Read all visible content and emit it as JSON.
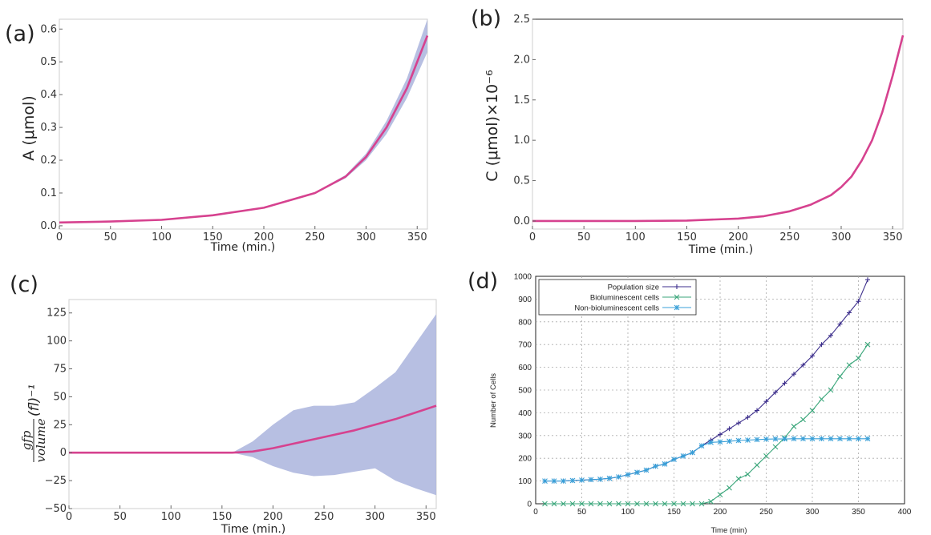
{
  "panels": {
    "a": "(a)",
    "b": "(b)",
    "c": "(c)",
    "d": "(d)"
  },
  "chart_data": [
    {
      "id": "a",
      "type": "line",
      "xlabel": "Time (min.)",
      "ylabel": "A (μmol)",
      "xlim": [
        0,
        360
      ],
      "ylim": [
        -0.01,
        0.63
      ],
      "x_ticks": [
        0,
        50,
        100,
        150,
        200,
        250,
        300,
        350
      ],
      "y_ticks": [
        0.0,
        0.1,
        0.2,
        0.3,
        0.4,
        0.5,
        0.6
      ],
      "x_tick_labels": [
        "0",
        "50",
        "100",
        "150",
        "200",
        "250",
        "300",
        "350"
      ],
      "y_tick_labels": [
        "0.0",
        "0.1",
        "0.2",
        "0.3",
        "0.4",
        "0.5",
        "0.6"
      ],
      "series": [
        {
          "x": [
            0,
            50,
            100,
            150,
            200,
            250,
            280,
            300,
            320,
            340,
            360
          ],
          "y": [
            0.01,
            0.013,
            0.018,
            0.032,
            0.055,
            0.1,
            0.15,
            0.21,
            0.3,
            0.42,
            0.58
          ],
          "band_low": [
            0.01,
            0.013,
            0.018,
            0.032,
            0.055,
            0.098,
            0.145,
            0.2,
            0.28,
            0.39,
            0.53
          ],
          "band_high": [
            0.01,
            0.013,
            0.018,
            0.032,
            0.055,
            0.102,
            0.155,
            0.22,
            0.32,
            0.45,
            0.63
          ]
        }
      ],
      "line_color": "#d6428f",
      "band_color": "#aab4dd",
      "grid": false
    },
    {
      "id": "b",
      "type": "line",
      "xlabel": "Time (min.)",
      "ylabel": "C (μmol)×10⁻⁶",
      "xlim": [
        0,
        360
      ],
      "ylim": [
        -0.1,
        2.5
      ],
      "x_ticks": [
        0,
        50,
        100,
        150,
        200,
        250,
        300,
        350
      ],
      "y_ticks": [
        0.0,
        0.5,
        1.0,
        1.5,
        2.0,
        2.5
      ],
      "x_tick_labels": [
        "0",
        "50",
        "100",
        "150",
        "200",
        "250",
        "300",
        "350"
      ],
      "y_tick_labels": [
        "0.0",
        "0.5",
        "1.0",
        "1.5",
        "2.0",
        "2.5"
      ],
      "series": [
        {
          "x": [
            0,
            100,
            150,
            200,
            225,
            250,
            270,
            290,
            300,
            310,
            320,
            330,
            340,
            350,
            360
          ],
          "y": [
            0.0,
            0.0,
            0.005,
            0.03,
            0.06,
            0.12,
            0.2,
            0.32,
            0.42,
            0.55,
            0.75,
            1.0,
            1.35,
            1.8,
            2.3
          ]
        }
      ],
      "line_color": "#d6428f",
      "grid": false
    },
    {
      "id": "c",
      "type": "line",
      "xlabel": "Time (min.)",
      "ylabel_num": "gfp",
      "ylabel_den": "volume",
      "ylabel_tail": "(fl)⁻¹",
      "xlim": [
        0,
        360
      ],
      "ylim": [
        -50,
        137
      ],
      "x_ticks": [
        0,
        50,
        100,
        150,
        200,
        250,
        300,
        350
      ],
      "y_ticks": [
        -50,
        -25,
        0,
        25,
        50,
        75,
        100,
        125
      ],
      "x_tick_labels": [
        "0",
        "50",
        "100",
        "150",
        "200",
        "250",
        "300",
        "350"
      ],
      "y_tick_labels": [
        "−50",
        "−25",
        "0",
        "25",
        "50",
        "75",
        "100",
        "125"
      ],
      "series": [
        {
          "x": [
            0,
            160,
            180,
            200,
            220,
            240,
            260,
            280,
            300,
            320,
            340,
            360
          ],
          "y": [
            0,
            0,
            1,
            4,
            8,
            12,
            16,
            20,
            25,
            30,
            36,
            42
          ],
          "band_low": [
            0,
            0,
            -4,
            -12,
            -18,
            -21,
            -20,
            -17,
            -14,
            -25,
            -32,
            -38
          ],
          "band_high": [
            0,
            0,
            10,
            25,
            38,
            42,
            42,
            45,
            58,
            72,
            98,
            124
          ]
        }
      ],
      "line_color": "#d6428f",
      "band_color": "#aab4dd",
      "grid": false
    },
    {
      "id": "d",
      "type": "line",
      "xlabel": "Time (min)",
      "ylabel": "Number of Cells",
      "xlim": [
        0,
        400
      ],
      "ylim": [
        0,
        1000
      ],
      "x_ticks": [
        0,
        50,
        100,
        150,
        200,
        250,
        300,
        350,
        400
      ],
      "y_ticks": [
        0,
        100,
        200,
        300,
        400,
        500,
        600,
        700,
        800,
        900,
        1000
      ],
      "x_tick_labels": [
        "0",
        "50",
        "100",
        "150",
        "200",
        "250",
        "300",
        "350",
        "400"
      ],
      "y_tick_labels": [
        "0",
        "100",
        "200",
        "300",
        "400",
        "500",
        "600",
        "700",
        "800",
        "900",
        "1000"
      ],
      "grid": true,
      "legend_position": "top-left",
      "x": [
        10,
        20,
        30,
        40,
        50,
        60,
        70,
        80,
        90,
        100,
        110,
        120,
        130,
        140,
        150,
        160,
        170,
        180,
        190,
        200,
        210,
        220,
        230,
        240,
        250,
        260,
        270,
        280,
        290,
        300,
        310,
        320,
        330,
        340,
        350,
        360
      ],
      "series": [
        {
          "name": "Population size",
          "color": "#3d2f8c",
          "marker": "plus",
          "values": [
            100,
            100,
            100,
            102,
            104,
            106,
            108,
            112,
            118,
            128,
            138,
            148,
            165,
            175,
            195,
            210,
            225,
            255,
            280,
            305,
            330,
            355,
            380,
            410,
            450,
            490,
            530,
            570,
            610,
            650,
            700,
            740,
            790,
            840,
            890,
            985
          ]
        },
        {
          "name": "Bioluminescent cells",
          "color": "#3aa67a",
          "marker": "x",
          "values": [
            0,
            0,
            0,
            0,
            0,
            0,
            0,
            0,
            0,
            0,
            0,
            0,
            0,
            0,
            0,
            0,
            0,
            0,
            10,
            40,
            70,
            110,
            130,
            170,
            210,
            250,
            290,
            340,
            370,
            410,
            460,
            500,
            560,
            610,
            640,
            700
          ]
        },
        {
          "name": "Non-bioluminescent cells",
          "color": "#3aa0d8",
          "marker": "star",
          "values": [
            100,
            100,
            100,
            102,
            104,
            106,
            108,
            112,
            118,
            128,
            138,
            148,
            165,
            175,
            195,
            210,
            225,
            255,
            270,
            272,
            275,
            278,
            280,
            282,
            284,
            285,
            285,
            286,
            286,
            286,
            286,
            286,
            286,
            286,
            286,
            286
          ]
        }
      ]
    }
  ]
}
